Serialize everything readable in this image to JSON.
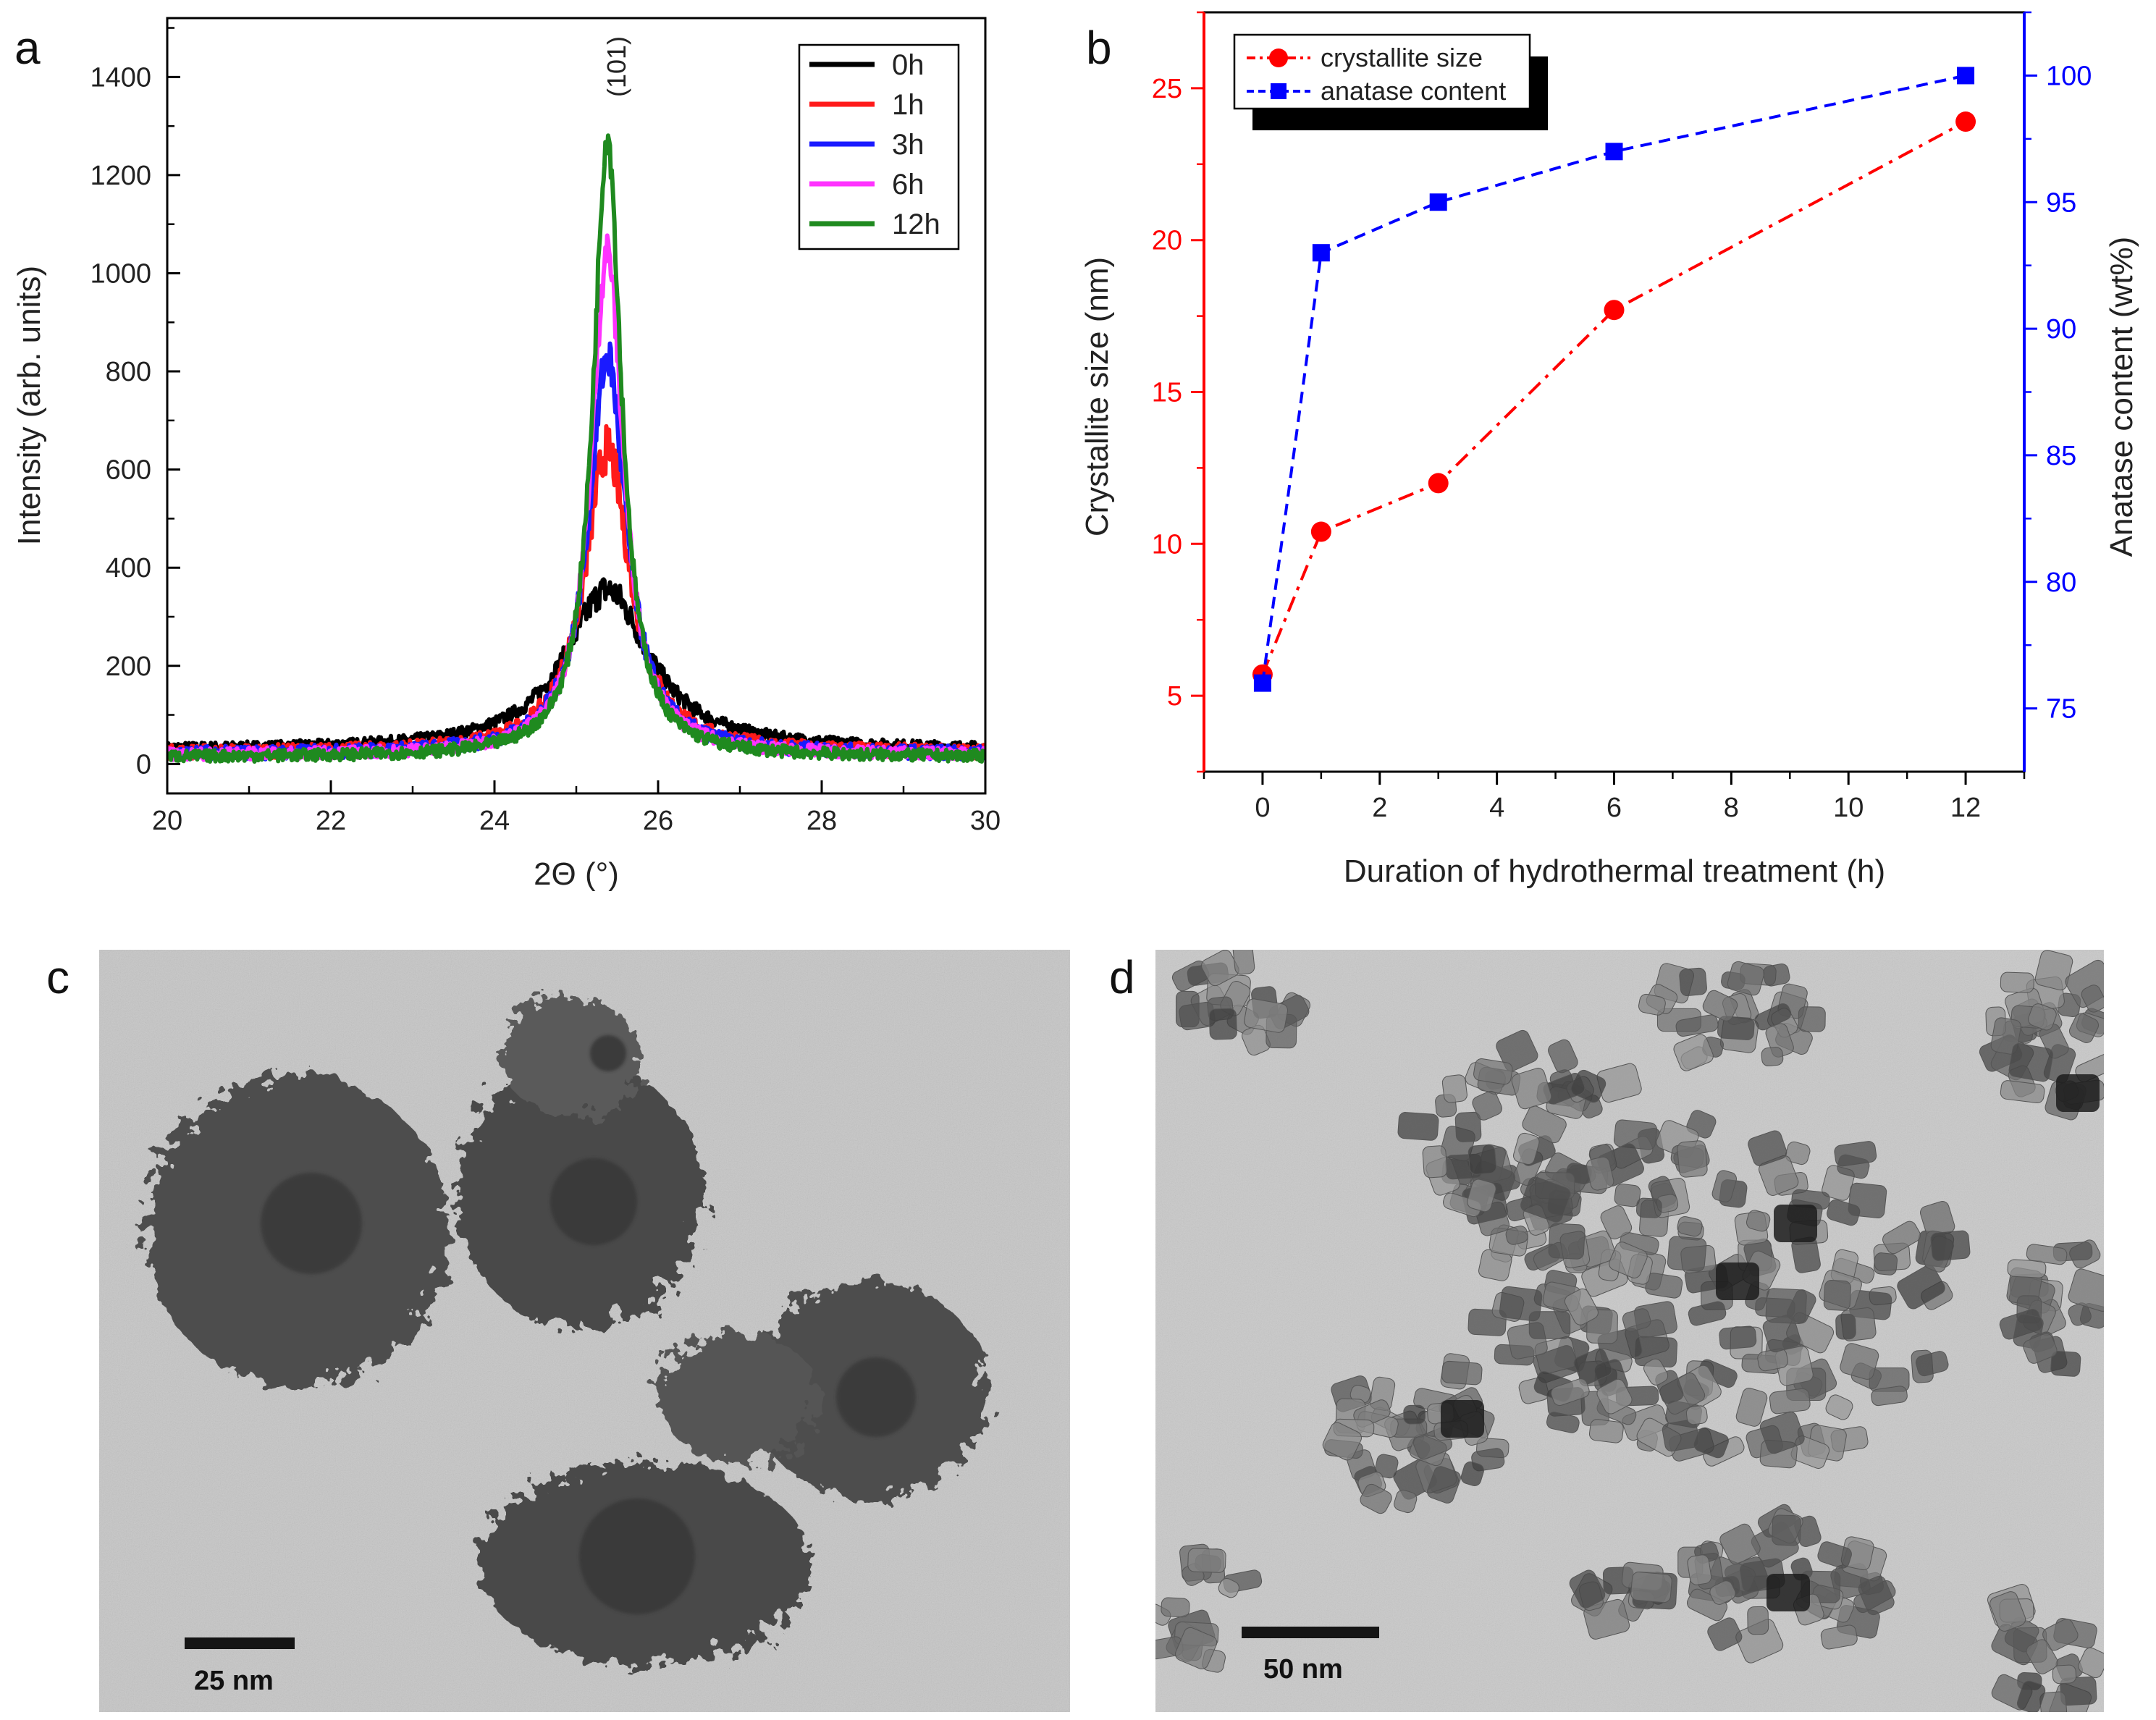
{
  "chart_data": [
    {
      "panel": "a",
      "type": "line",
      "xlabel": "2Θ (°)",
      "ylabel": "Intensity (arb. units)",
      "xlim": [
        20,
        30
      ],
      "ylim": [
        -60,
        1520
      ],
      "xticks": [
        20,
        22,
        24,
        26,
        28,
        30
      ],
      "yticks": [
        0,
        200,
        400,
        600,
        800,
        1000,
        1200,
        1400
      ],
      "annotation": "(101)",
      "series": [
        {
          "name": "0h",
          "color": "#000000",
          "peak": 325,
          "base": 30,
          "width": 0.62,
          "noise": 9
        },
        {
          "name": "1h",
          "color": "#ff1a1a",
          "peak": 620,
          "base": 22,
          "width": 0.34,
          "noise": 14
        },
        {
          "name": "3h",
          "color": "#1a1aff",
          "peak": 810,
          "base": 20,
          "width": 0.28,
          "noise": 14
        },
        {
          "name": "6h",
          "color": "#ff33ff",
          "peak": 1030,
          "base": 18,
          "width": 0.24,
          "noise": 12
        },
        {
          "name": "12h",
          "color": "#1f8a1f",
          "peak": 1270,
          "base": 14,
          "width": 0.21,
          "noise": 12
        }
      ]
    },
    {
      "panel": "b",
      "type": "line",
      "xlabel": "Duration of hydrothermal treatment (h)",
      "ylabel_left": "Crystallite size (nm)",
      "ylabel_right": "Anatase content (wt%)",
      "xlim": [
        -1,
        13
      ],
      "ylim_left": [
        2.5,
        27.5
      ],
      "ylim_right": [
        72.5,
        102.5
      ],
      "xticks": [
        0,
        2,
        4,
        6,
        8,
        10,
        12
      ],
      "yticks_left": [
        5,
        10,
        15,
        20,
        25
      ],
      "yticks_right": [
        75,
        80,
        85,
        90,
        95,
        100
      ],
      "series": [
        {
          "name": "crystallite size",
          "axis": "left",
          "color": "#ff0000",
          "marker": "circle",
          "x": [
            0,
            1,
            3,
            6,
            12
          ],
          "y": [
            5.7,
            10.4,
            12.0,
            17.7,
            23.9
          ]
        },
        {
          "name": "anatase content",
          "axis": "right",
          "color": "#0000ff",
          "marker": "square",
          "x": [
            0,
            1,
            3,
            6,
            12
          ],
          "y": [
            76,
            93,
            95,
            97,
            100
          ]
        }
      ]
    }
  ],
  "panels": {
    "a": {
      "letter": "a"
    },
    "b": {
      "letter": "b"
    },
    "c": {
      "letter": "c",
      "scale_bar": "25 nm"
    },
    "d": {
      "letter": "d",
      "scale_bar": "50 nm"
    }
  },
  "colors": {
    "left_axis": "#ff0000",
    "right_axis": "#0000ff",
    "tem_background": "#c4c4c4",
    "particle": "#3a3a3a"
  }
}
